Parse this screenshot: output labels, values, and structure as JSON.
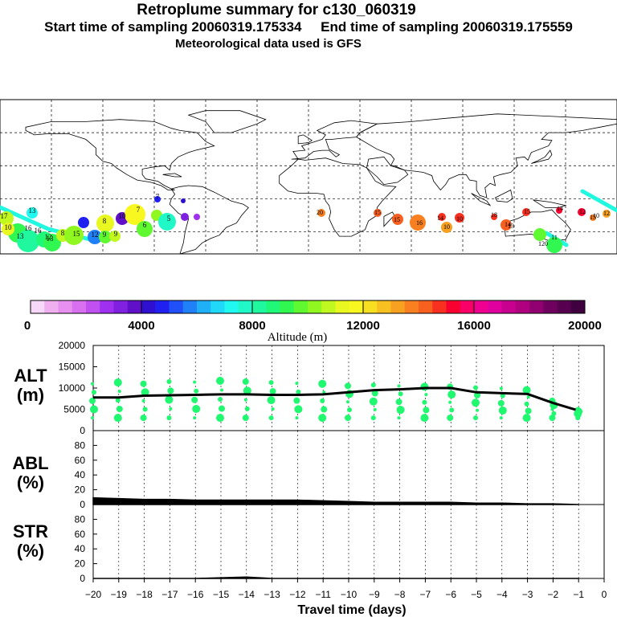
{
  "header": {
    "title": "Retroplume summary for c130_060319",
    "sampling": "Start time of sampling 20060319.175334     End time of sampling 20060319.175559",
    "met": "Meteorological data used is GFS"
  },
  "colorbar": {
    "ticks": [
      "0",
      "4000",
      "8000",
      "12000",
      "16000",
      "20000"
    ],
    "title": "Altitude (m)",
    "colors": [
      "#f8d8f8",
      "#f0b0f0",
      "#e890f0",
      "#d870f0",
      "#c050f0",
      "#a030f0",
      "#8020e0",
      "#6010c8",
      "#3010d0",
      "#2020f0",
      "#2050f8",
      "#2080f8",
      "#20b0f8",
      "#20d8f8",
      "#20f8f0",
      "#20f8c8",
      "#20f8a0",
      "#20f878",
      "#30f850",
      "#60f830",
      "#90f820",
      "#c0f820",
      "#e8f820",
      "#f8f820",
      "#f8e020",
      "#f8c020",
      "#f8a020",
      "#f88020",
      "#f86020",
      "#f83020",
      "#f80030",
      "#f80068",
      "#f00090",
      "#e000a0",
      "#c80090",
      "#b00080",
      "#900070",
      "#700060",
      "#580050",
      "#400040"
    ]
  },
  "map_labels": {
    "americas": [
      "17",
      "10",
      "16",
      "13",
      "16",
      "13",
      "12",
      "15",
      "8",
      "9",
      "12",
      "13",
      "8",
      "9",
      "10",
      "7",
      "6",
      "5",
      "7"
    ],
    "east": [
      "20",
      "15",
      "15",
      "16",
      "14",
      "10",
      "10",
      "18",
      "14",
      "15",
      "12",
      "15",
      "14",
      "12",
      "10",
      "13",
      "11",
      "120"
    ]
  },
  "panels": {
    "alt": {
      "label": "ALT",
      "unit": "(m)",
      "ticks": [
        "0",
        "5000",
        "10000",
        "15000",
        "20000"
      ]
    },
    "abl": {
      "label": "ABL",
      "unit": "(%)",
      "ticks": [
        "0",
        "20",
        "40",
        "60",
        "80"
      ]
    },
    "str": {
      "label": "STR",
      "unit": "(%)",
      "ticks": [
        "0",
        "20",
        "40",
        "60",
        "80"
      ]
    },
    "x_ticks": [
      "−20",
      "−19",
      "−18",
      "−17",
      "−16",
      "−15",
      "−14",
      "−13",
      "−12",
      "−11",
      "−10",
      "−9",
      "−8",
      "−7",
      "−6",
      "−5",
      "−4",
      "−3",
      "−2",
      "−1",
      "0"
    ],
    "x_label": "Travel time (days)"
  },
  "chart_data": [
    {
      "type": "line",
      "title": "ALT",
      "xlabel": "Travel time (days)",
      "ylabel": "(m)",
      "xlim": [
        -20,
        0
      ],
      "ylim": [
        0,
        20000
      ],
      "series": [
        {
          "name": "mean altitude",
          "x": [
            -20,
            -19,
            -18,
            -17,
            -16,
            -15,
            -14,
            -13,
            -12,
            -11,
            -10,
            -9,
            -8,
            -7,
            -6,
            -5,
            -4,
            -3,
            -2,
            -1
          ],
          "values": [
            7800,
            7800,
            8200,
            8300,
            8400,
            8500,
            8500,
            8400,
            8400,
            8500,
            9000,
            9500,
            9700,
            10000,
            10000,
            9000,
            8800,
            8600,
            6500,
            4700
          ]
        },
        {
          "name": "particle clusters (max)",
          "x": [
            -20,
            -19,
            -18,
            -17,
            -16,
            -15,
            -14,
            -13,
            -12,
            -11,
            -10,
            -9,
            -8,
            -7,
            -6,
            -5,
            -4,
            -3,
            -2,
            -1
          ],
          "values": [
            11000,
            11300,
            11000,
            11500,
            11400,
            11700,
            11500,
            11300,
            11100,
            11000,
            10500,
            10700,
            10500,
            10300,
            10300,
            10100,
            9900,
            9500,
            7000,
            5000
          ]
        }
      ]
    },
    {
      "type": "area",
      "title": "ABL",
      "ylabel": "(%)",
      "xlim": [
        -20,
        0
      ],
      "ylim": [
        0,
        100
      ],
      "series": [
        {
          "name": "ABL",
          "x": [
            -20,
            -19,
            -18,
            -17,
            -16,
            -15,
            -14,
            -13,
            -12,
            -11,
            -10,
            -9,
            -8,
            -7,
            -6,
            -5,
            -4,
            -3,
            -2,
            -1
          ],
          "values": [
            9,
            8,
            7,
            7,
            6,
            6,
            6,
            6,
            6,
            5,
            4,
            3,
            3,
            3,
            3,
            2,
            2,
            1,
            1,
            0
          ]
        }
      ]
    },
    {
      "type": "area",
      "title": "STR",
      "ylabel": "(%)",
      "xlim": [
        -20,
        0
      ],
      "ylim": [
        0,
        100
      ],
      "series": [
        {
          "name": "STR",
          "x": [
            -20,
            -19,
            -18,
            -17,
            -16,
            -15,
            -14,
            -13,
            -12,
            -11,
            -10,
            -9,
            -8,
            -7,
            -6,
            -5,
            -4,
            -3,
            -2,
            -1
          ],
          "values": [
            0,
            0,
            0,
            0,
            0,
            1,
            2,
            0,
            0,
            0,
            0,
            0,
            0,
            0,
            0,
            0,
            0,
            0,
            0,
            0
          ]
        }
      ]
    }
  ]
}
